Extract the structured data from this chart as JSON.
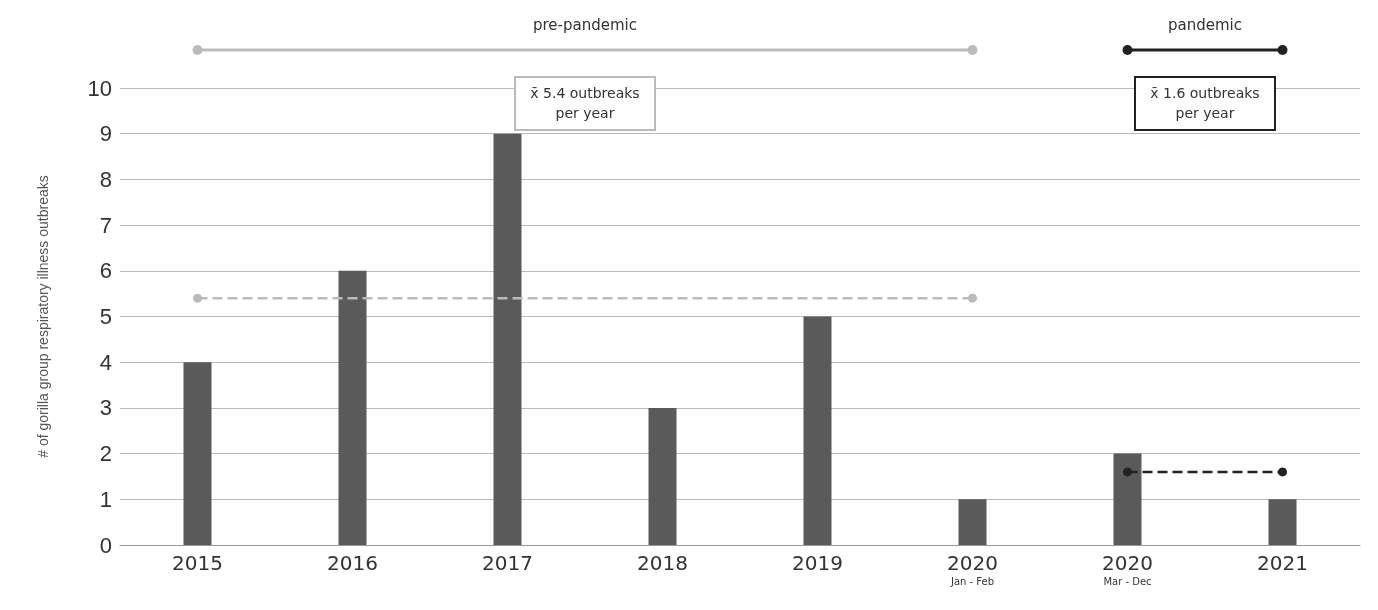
{
  "chart_data": {
    "type": "bar",
    "ylabel": "# of gorilla group respiratory illness outbreaks",
    "categories": [
      "2015",
      "2016",
      "2017",
      "2018",
      "2019",
      "2020\nJan - Feb",
      "2020\nMar - Dec",
      "2021"
    ],
    "ylim": [
      0,
      10
    ],
    "yticks": [
      0,
      1,
      2,
      3,
      4,
      5,
      6,
      7,
      8,
      9,
      10
    ],
    "grid": "y",
    "series": [
      {
        "color": "#5a5a5a",
        "values": [
          4,
          6,
          9,
          3,
          5,
          1,
          2,
          1
        ]
      },
      {
        "type": "line",
        "color": "#bbbbbb",
        "line_style": "dashed",
        "marker": "circle",
        "values": [
          5.4,
          null,
          null,
          null,
          null,
          5.4,
          null,
          null
        ]
      },
      {
        "type": "line",
        "color": "#222222",
        "line_style": "dashed",
        "marker": "circle",
        "values": [
          null,
          null,
          null,
          null,
          null,
          null,
          1.6,
          1.6
        ]
      }
    ],
    "annotations": [
      "pre-pandemic",
      "x̄ 5.4 outbreaks per year",
      "pandemic",
      "x̄ 1.6 outbreaks per year"
    ]
  }
}
